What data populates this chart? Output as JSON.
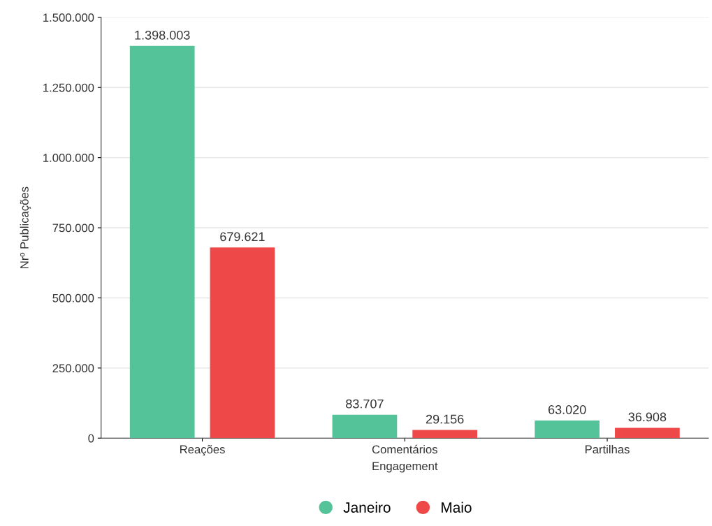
{
  "chart_data": {
    "type": "bar",
    "xlabel": "Engagement",
    "ylabel": "Nrº Publicações",
    "categories": [
      "Reações",
      "Comentários",
      "Partilhas"
    ],
    "series": [
      {
        "name": "Janeiro",
        "color": "#55c39a",
        "values": [
          1398003,
          83707,
          63020
        ],
        "value_labels": [
          "1.398.003",
          "83.707",
          "63.020"
        ]
      },
      {
        "name": "Maio",
        "color": "#ee4848",
        "values": [
          679621,
          29156,
          36908
        ],
        "value_labels": [
          "679.621",
          "29.156",
          "36.908"
        ]
      }
    ],
    "ylim": [
      0,
      1500000
    ],
    "yticks": [
      0,
      {
        "value": 250000,
        "label": "250.000"
      },
      {
        "value": 500000,
        "label": "500.000"
      },
      {
        "value": 750000,
        "label": "750.000"
      },
      {
        "value": 1000000,
        "label": "1.000.000"
      },
      {
        "value": 1250000,
        "label": "1.250.000"
      },
      {
        "value": 1500000,
        "label": "1.500.000"
      }
    ],
    "grid": "y",
    "legend": "bottom"
  }
}
